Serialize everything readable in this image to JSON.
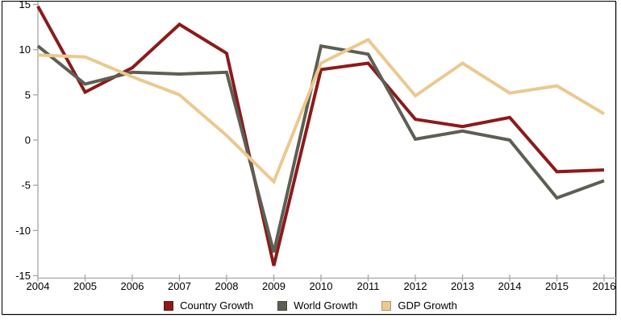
{
  "frame": {
    "background": "#ffffff",
    "border_color": "#000000"
  },
  "chart_data": {
    "type": "line",
    "title": "",
    "xlabel": "",
    "ylabel": "",
    "x": [
      2004,
      2005,
      2006,
      2007,
      2008,
      2009,
      2010,
      2011,
      2012,
      2013,
      2014,
      2015,
      2016
    ],
    "series": [
      {
        "name": "Country Growth",
        "color": "#8C1A1A",
        "values": [
          14.8,
          5.3,
          8.0,
          12.8,
          9.6,
          -13.9,
          7.8,
          8.5,
          2.3,
          1.5,
          2.5,
          -3.5,
          -3.3
        ]
      },
      {
        "name": "World Growth",
        "color": "#5C5F53",
        "values": [
          10.4,
          6.2,
          7.5,
          7.3,
          7.5,
          -12.4,
          10.4,
          9.5,
          0.1,
          1.0,
          0.0,
          -6.4,
          -4.5
        ]
      },
      {
        "name": "GDP Growth",
        "color": "#EBC98F",
        "values": [
          9.4,
          9.2,
          7.0,
          5.0,
          0.5,
          -4.6,
          8.5,
          11.1,
          4.9,
          8.5,
          5.2,
          6.0,
          2.9
        ]
      }
    ],
    "ylim": [
      -15,
      15
    ],
    "yticks": [
      15,
      10,
      5,
      0,
      -5,
      -10,
      -15
    ],
    "grid": false,
    "legend_position": "bottom-center",
    "axis_color": "#a6a6a6",
    "text_color": "#000000"
  }
}
